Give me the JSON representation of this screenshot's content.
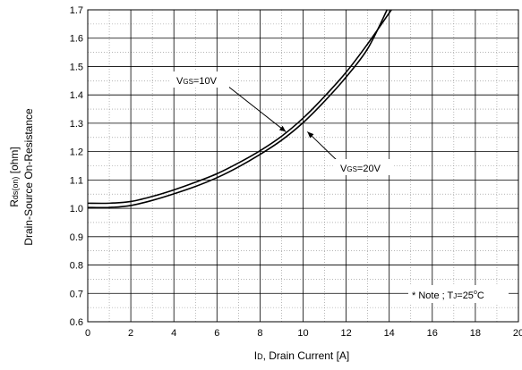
{
  "chart_data": {
    "type": "line",
    "title": "",
    "xlabel": {
      "main": "I",
      "sub": "D",
      "rest": ", Drain Current [A]"
    },
    "ylabel": {
      "line1": {
        "main": "R",
        "sub": "ds(on)",
        "rest": " [ohm]"
      },
      "line2": "Drain-Source On-Resistance"
    },
    "xlim": [
      0,
      20
    ],
    "ylim": [
      0.6,
      1.7
    ],
    "x_ticks": [
      "0",
      "2",
      "4",
      "6",
      "8",
      "10",
      "12",
      "14",
      "16",
      "18",
      "20"
    ],
    "y_ticks": [
      "0.6",
      "0.7",
      "0.8",
      "0.9",
      "1.0",
      "1.1",
      "1.2",
      "1.3",
      "1.4",
      "1.5",
      "1.6",
      "1.7"
    ],
    "grid": true,
    "series": [
      {
        "name": "VGS=10V",
        "x": [
          0,
          1,
          2,
          3,
          4,
          5,
          6,
          7,
          8,
          9,
          10,
          11,
          12,
          13,
          14.1
        ],
        "y": [
          1.018,
          1.018,
          1.024,
          1.042,
          1.065,
          1.092,
          1.122,
          1.16,
          1.203,
          1.254,
          1.318,
          1.395,
          1.48,
          1.58,
          1.7
        ]
      },
      {
        "name": "VGS=20V",
        "x": [
          0,
          1,
          2,
          3,
          4,
          5,
          6,
          7,
          8,
          9,
          10,
          11,
          12,
          13,
          13.9
        ],
        "y": [
          1.003,
          1.003,
          1.01,
          1.028,
          1.051,
          1.077,
          1.108,
          1.146,
          1.19,
          1.24,
          1.302,
          1.378,
          1.463,
          1.563,
          1.7
        ]
      }
    ],
    "annotations": [
      {
        "pre": "V",
        "sub": "GS",
        "post": "=10V",
        "point": [
          9.2,
          1.27
        ]
      },
      {
        "pre": "V",
        "sub": "GS",
        "post": "=20V",
        "point": [
          10.2,
          1.27
        ]
      }
    ],
    "note": {
      "pre": "* Note ; T",
      "sub": "J",
      "mid": "=25",
      "sup": "o",
      "post": "C"
    }
  }
}
